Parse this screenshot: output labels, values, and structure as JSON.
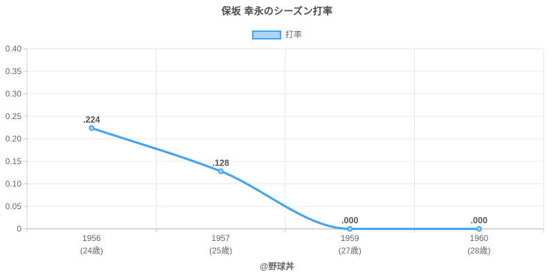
{
  "chart_data": {
    "type": "line",
    "title": "保坂 幸永のシーズン打率",
    "legend": {
      "label": "打率",
      "position": "top"
    },
    "categories": [
      "1956",
      "1957",
      "1959",
      "1960"
    ],
    "category_sublabels": [
      "(24歳)",
      "(25歳)",
      "(27歳)",
      "(28歳)"
    ],
    "series": [
      {
        "name": "打率",
        "values": [
          0.224,
          0.128,
          0.0,
          0.0
        ],
        "point_labels": [
          ".224",
          ".128",
          ".000",
          ".000"
        ]
      }
    ],
    "xlabel": "",
    "ylabel": "",
    "ylim": [
      0,
      0.4
    ],
    "y_tick_labels": [
      "0.40",
      "0.35",
      "0.30",
      "0.25",
      "0.20",
      "0.15",
      "0.10",
      "0.05",
      "0"
    ],
    "grid": true,
    "line_style": "smooth",
    "colors": {
      "line": "#42a4f5",
      "point_fill": "#a9d4f4",
      "legend_fill": "#a9d4f4",
      "legend_border": "#42a4f5",
      "point_label": "#555555",
      "axis_text": "#666666",
      "grid": "#e8e8e8",
      "vertical_grid": "#e3e3e3",
      "baseline": "#c6c6c6",
      "tick": "#cccccc"
    }
  },
  "footer": {
    "credit": "@野球丼"
  }
}
